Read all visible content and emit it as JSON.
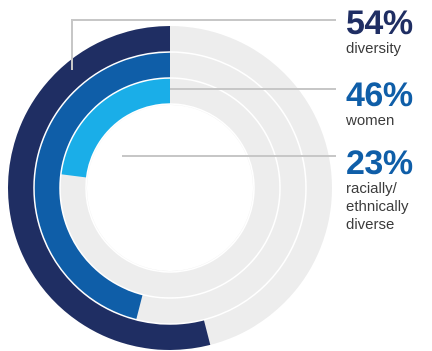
{
  "colors": {
    "track": "#ededed",
    "leader": "#c7c7c7",
    "label_text": "#3b3b3b"
  },
  "chart_data": {
    "type": "donut",
    "total": 100,
    "series": [
      {
        "value": 54,
        "color": "#1f2e63"
      },
      {
        "value": 46,
        "color": "#0f5ea8"
      },
      {
        "value": 23,
        "color": "#1aaee8"
      }
    ],
    "labels": [
      {
        "value_label": "54%",
        "text": "diversity",
        "color": "#1f2e63"
      },
      {
        "value_label": "46%",
        "text": "women",
        "color": "#0f5ea8"
      },
      {
        "value_label": "23%",
        "text": "racially/\nethnically\ndiverse",
        "color": "#0f5ea8"
      }
    ]
  }
}
